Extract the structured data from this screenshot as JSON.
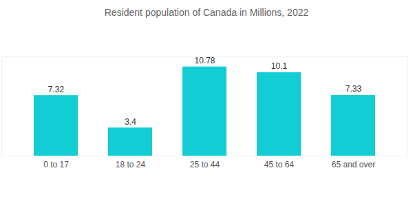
{
  "chart_data": {
    "type": "bar",
    "title": "Resident population of Canada in Millions, 2022",
    "categories": [
      "0 to 17",
      "18 to 24",
      "25 to 44",
      "45 to 64",
      "65 and over"
    ],
    "values": [
      7.32,
      3.4,
      10.78,
      10.1,
      7.33
    ],
    "color": "#12cdd4",
    "ylim": [
      0,
      12
    ],
    "grid": false,
    "data_labels": true,
    "tick_labels": "x"
  }
}
